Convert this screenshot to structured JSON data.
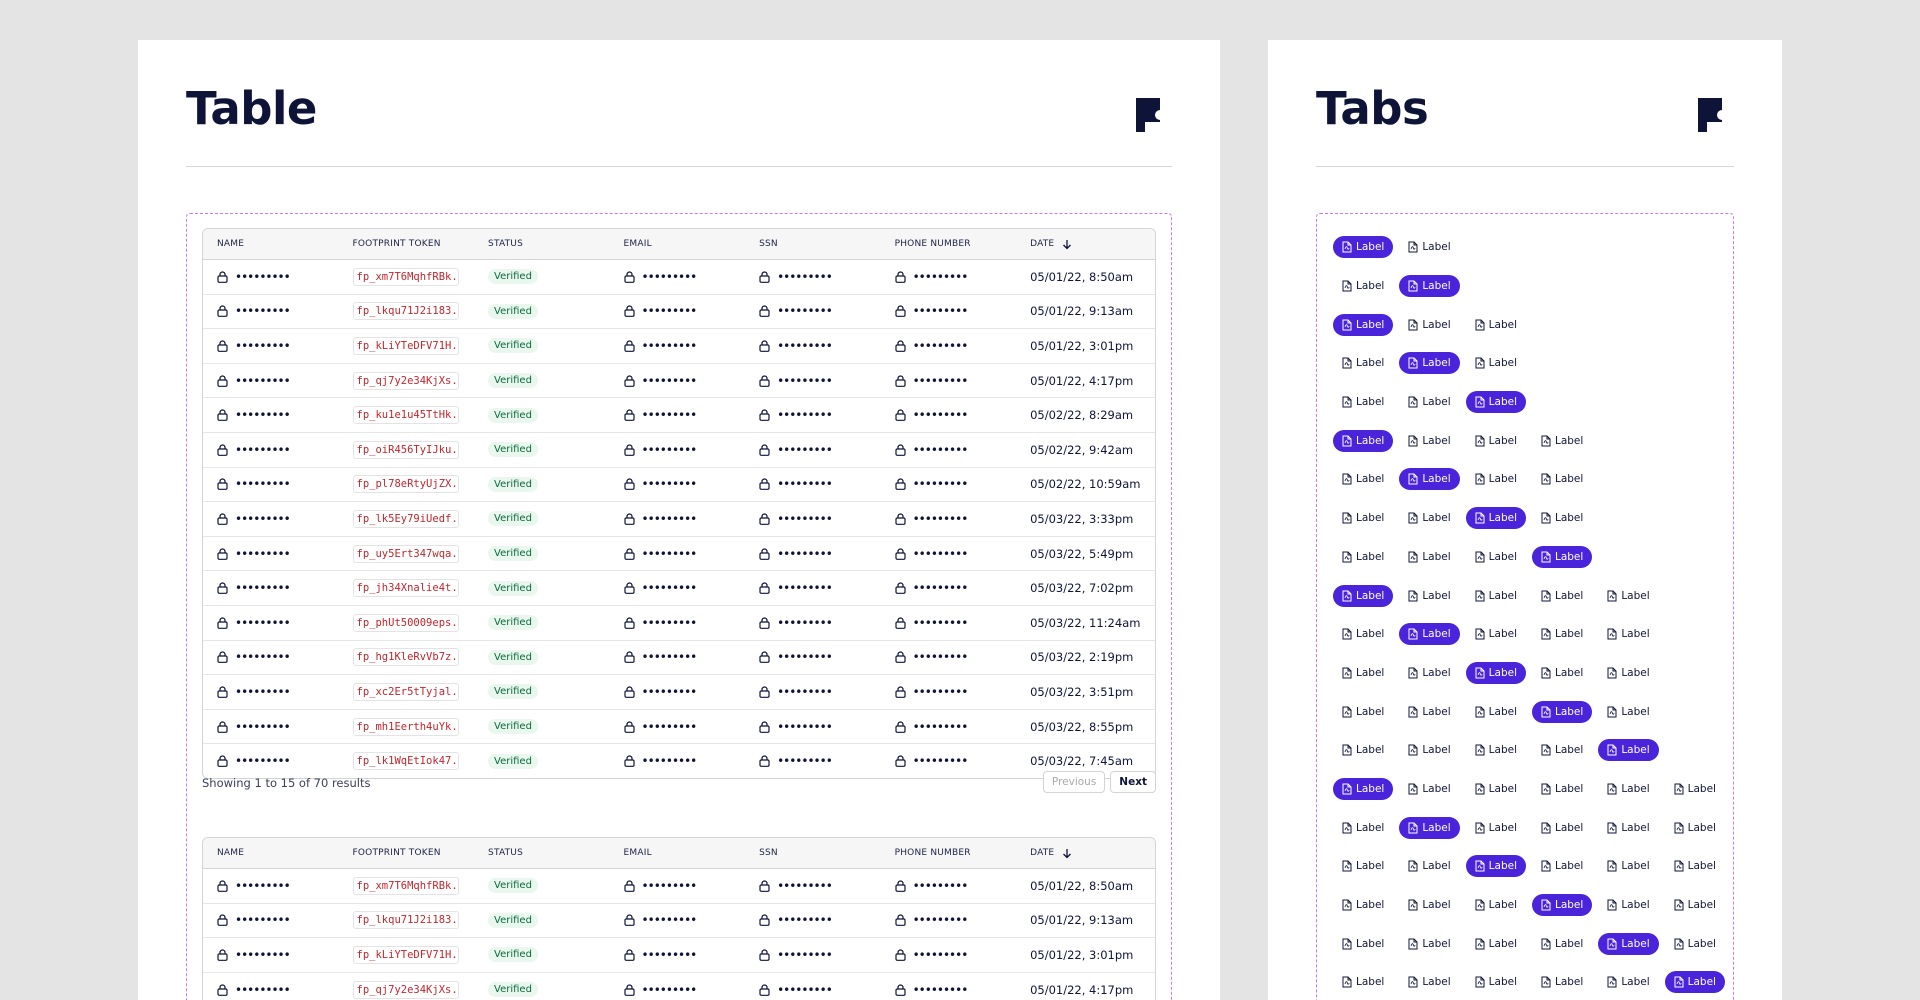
{
  "table_card": {
    "title": "Table",
    "columns": [
      "NAME",
      "FOOTPRINT TOKEN",
      "STATUS",
      "EMAIL",
      "SSN",
      "PHONE NUMBER",
      "DATE"
    ],
    "masked_value": "•••••••••",
    "status_label": "Verified",
    "rows": [
      {
        "token": "fp_xm7T6MqhfRBk...",
        "date": "05/01/22, 8:50am"
      },
      {
        "token": "fp_lkqu71J2i183...",
        "date": "05/01/22, 9:13am"
      },
      {
        "token": "fp_kLiYTeDFV71H...",
        "date": "05/01/22, 3:01pm"
      },
      {
        "token": "fp_qj7y2e34KjXs...",
        "date": "05/01/22, 4:17pm"
      },
      {
        "token": "fp_ku1e1u45TtHk...",
        "date": "05/02/22, 8:29am"
      },
      {
        "token": "fp_oiR456TyIJku...",
        "date": "05/02/22, 9:42am"
      },
      {
        "token": "fp_pl78eRtyUjZX...",
        "date": "05/02/22, 10:59am"
      },
      {
        "token": "fp_lk5Ey79iUedf...",
        "date": "05/03/22, 3:33pm"
      },
      {
        "token": "fp_uy5Ert347wqa...",
        "date": "05/03/22, 5:49pm"
      },
      {
        "token": "fp_jh34Xnalie4t...",
        "date": "05/03/22, 7:02pm"
      },
      {
        "token": "fp_phUt50009eps...",
        "date": "05/03/22, 11:24am"
      },
      {
        "token": "fp_hg1KleRvVb7z...",
        "date": "05/03/22, 2:19pm"
      },
      {
        "token": "fp_xc2Er5tTyjal...",
        "date": "05/03/22, 3:51pm"
      },
      {
        "token": "fp_mh1Eerth4uYk...",
        "date": "05/03/22, 8:55pm"
      },
      {
        "token": "fp_lk1WqEtIok47...",
        "date": "05/03/22, 7:45am"
      }
    ],
    "rows_second": [
      {
        "token": "fp_xm7T6MqhfRBk...",
        "date": "05/01/22, 8:50am"
      },
      {
        "token": "fp_lkqu71J2i183...",
        "date": "05/01/22, 9:13am"
      },
      {
        "token": "fp_kLiYTeDFV71H...",
        "date": "05/01/22, 3:01pm"
      },
      {
        "token": "fp_qj7y2e34KjXs...",
        "date": "05/01/22, 4:17pm"
      }
    ],
    "pagination": {
      "summary": "Showing 1 to 15 of 70 results",
      "previous": "Previous",
      "next": "Next"
    }
  },
  "tabs_card": {
    "title": "Tabs",
    "tab_label": "Label",
    "rows": [
      {
        "count": 2,
        "active": 0
      },
      {
        "count": 2,
        "active": 1
      },
      {
        "count": 3,
        "active": 0
      },
      {
        "count": 3,
        "active": 1
      },
      {
        "count": 3,
        "active": 2
      },
      {
        "count": 4,
        "active": 0
      },
      {
        "count": 4,
        "active": 1
      },
      {
        "count": 4,
        "active": 2
      },
      {
        "count": 4,
        "active": 3
      },
      {
        "count": 5,
        "active": 0
      },
      {
        "count": 5,
        "active": 1
      },
      {
        "count": 5,
        "active": 2
      },
      {
        "count": 5,
        "active": 3
      },
      {
        "count": 5,
        "active": 4
      },
      {
        "count": 6,
        "active": 0
      },
      {
        "count": 6,
        "active": 1
      },
      {
        "count": 6,
        "active": 2
      },
      {
        "count": 6,
        "active": 3
      },
      {
        "count": 6,
        "active": 4
      },
      {
        "count": 6,
        "active": 5
      }
    ]
  },
  "colors": {
    "background": "#e4e4e4",
    "accent": "#4a24db",
    "token_red": "#c0262d",
    "verified_green": "#0a6b3a",
    "dashed_frame": "#c97ae6"
  }
}
